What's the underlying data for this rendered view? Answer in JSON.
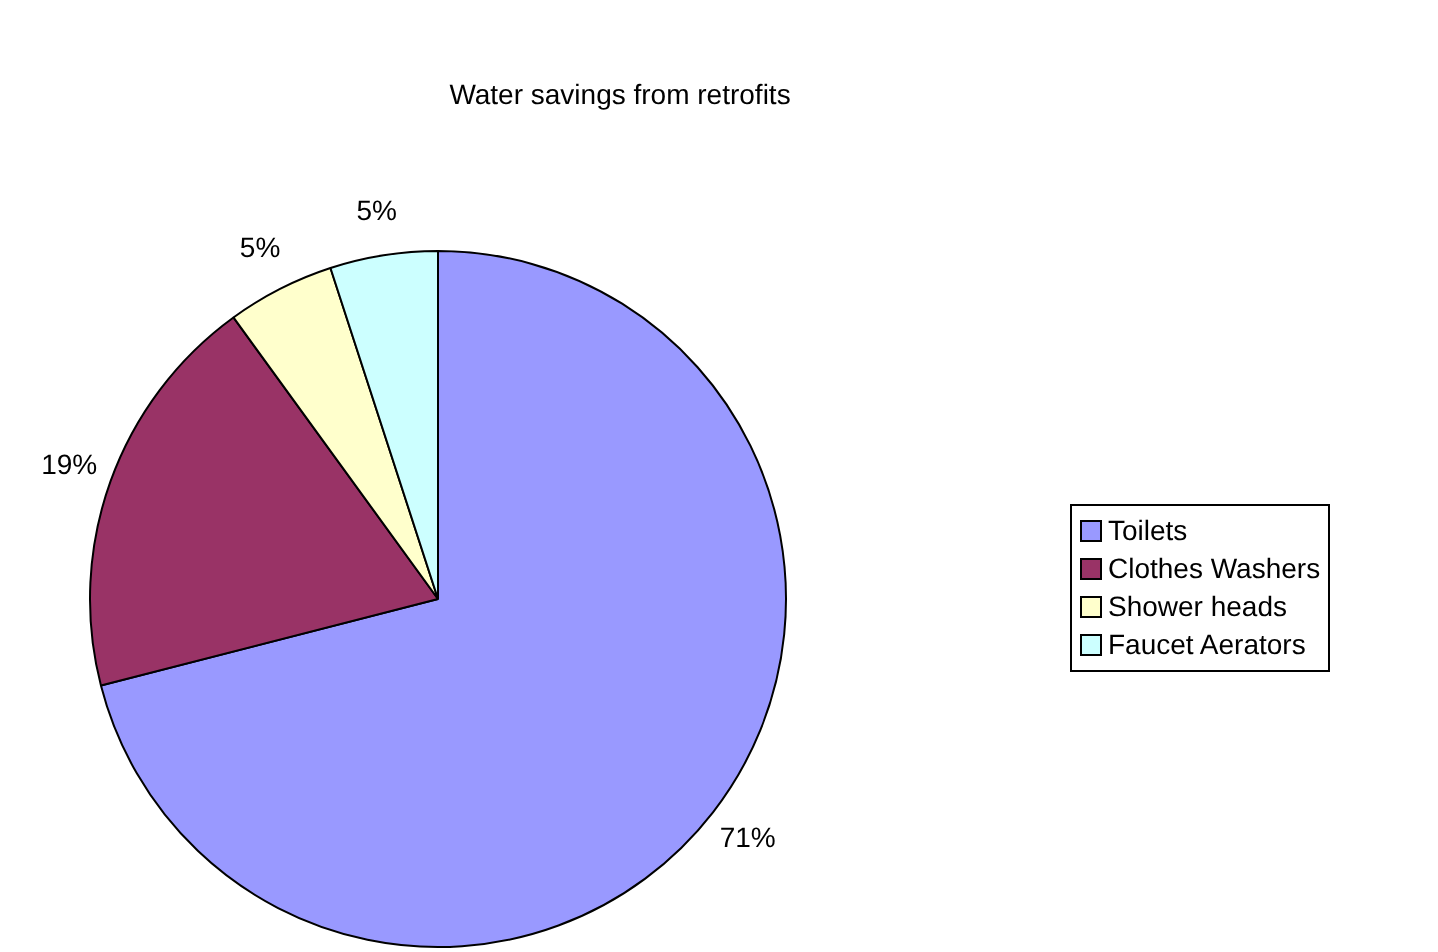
{
  "chart_data": {
    "type": "pie",
    "title": "Water savings from retrofits",
    "categories": [
      "Toilets",
      "Clothes Washers",
      "Shower heads",
      "Faucet Aerators"
    ],
    "values": [
      71,
      19,
      5,
      5
    ],
    "value_labels": [
      "71%",
      "19%",
      "5%",
      "5%"
    ],
    "colors": [
      "#9999ff",
      "#993366",
      "#ffffcc",
      "#ccffff"
    ],
    "legend": "right"
  }
}
